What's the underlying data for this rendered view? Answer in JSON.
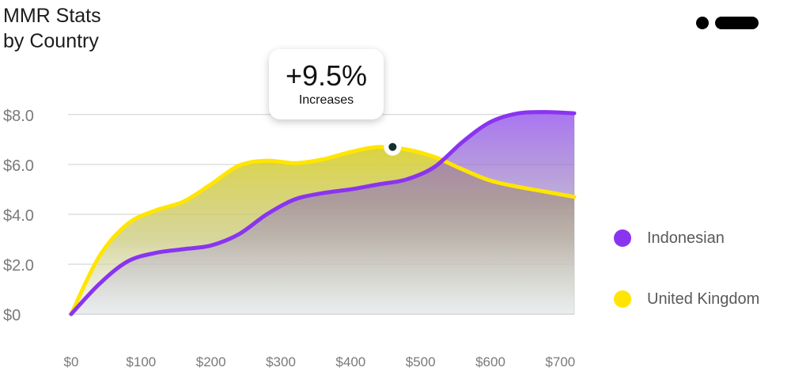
{
  "header": {
    "title_line1": "MMR Stats",
    "title_line2": "by Country"
  },
  "menu": {
    "icon": "more-menu-icon"
  },
  "tooltip": {
    "value": "+9.5%",
    "label": "Increases",
    "x": 460,
    "y": 6.7
  },
  "chart_data": {
    "type": "area",
    "title": "MMR Stats by Country",
    "xlabel": "",
    "ylabel": "",
    "xlim": [
      0,
      720
    ],
    "ylim": [
      0,
      8.5
    ],
    "x_ticks": [
      0,
      100,
      200,
      300,
      400,
      500,
      600,
      700
    ],
    "x_tick_labels": [
      "$0",
      "$100",
      "$200",
      "$300",
      "$400",
      "$500",
      "$600",
      "$700"
    ],
    "y_ticks": [
      0,
      2,
      4,
      6,
      8
    ],
    "y_tick_labels": [
      "$0",
      "$2.0",
      "$4.0",
      "$6.0",
      "$8.0"
    ],
    "grid": true,
    "legend_position": "right",
    "series": [
      {
        "name": "Indonesian",
        "color": "#8a34f0",
        "x": [
          0,
          40,
          80,
          120,
          160,
          200,
          240,
          280,
          320,
          360,
          400,
          440,
          480,
          520,
          560,
          600,
          640,
          680,
          720
        ],
        "values": [
          0,
          1.2,
          2.1,
          2.45,
          2.6,
          2.75,
          3.2,
          4.0,
          4.6,
          4.85,
          5.0,
          5.2,
          5.4,
          5.9,
          6.9,
          7.7,
          8.05,
          8.1,
          8.05
        ]
      },
      {
        "name": "United Kingdom",
        "color": "#ffe500",
        "x": [
          0,
          40,
          80,
          120,
          160,
          200,
          240,
          280,
          320,
          360,
          400,
          440,
          480,
          520,
          560,
          600,
          640,
          680,
          720
        ],
        "values": [
          0,
          2.3,
          3.6,
          4.15,
          4.5,
          5.2,
          5.95,
          6.15,
          6.05,
          6.2,
          6.5,
          6.7,
          6.6,
          6.3,
          5.8,
          5.35,
          5.1,
          4.9,
          4.7
        ]
      }
    ]
  }
}
